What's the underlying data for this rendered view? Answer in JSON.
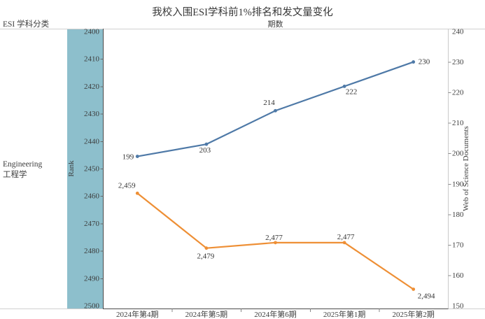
{
  "header": {
    "row_dimension_label": "ESI 学科分类"
  },
  "row": {
    "label_en": "Engineering",
    "label_zh": "工程学"
  },
  "chart_data": {
    "type": "line",
    "title": "我校入围ESI学科前1%排名和发文量变化",
    "x_axis_title": "期数",
    "categories": [
      "2024年第4期",
      "2024年第5期",
      "2024年第6期",
      "2025年第1期",
      "2025年第2期"
    ],
    "series": [
      {
        "name": "Web of Science Documents",
        "axis": "right",
        "color": "#4e79a7",
        "values": [
          199,
          203,
          214,
          222,
          230
        ],
        "point_labels": [
          "199",
          "203",
          "214",
          "222",
          "230"
        ]
      },
      {
        "name": "Rank",
        "axis": "left",
        "color": "#ee8f35",
        "values": [
          2459,
          2479,
          2477,
          2477,
          2494
        ],
        "point_labels": [
          "2,459",
          "2,479",
          "2,477",
          "2,477",
          "2,494"
        ]
      }
    ],
    "left_axis": {
      "title": "Rank",
      "min": 2400,
      "max": 2500,
      "inverted": true,
      "ticks": [
        2400,
        2410,
        2420,
        2430,
        2440,
        2450,
        2460,
        2470,
        2480,
        2490,
        2500
      ],
      "band_color": "#8dbfcc"
    },
    "right_axis": {
      "title": "Web of Science Documents",
      "min": 150,
      "max": 240,
      "ticks": [
        150,
        160,
        170,
        180,
        190,
        200,
        210,
        220,
        230,
        240
      ]
    },
    "grid": false,
    "legend": "none",
    "marker": "circle"
  }
}
